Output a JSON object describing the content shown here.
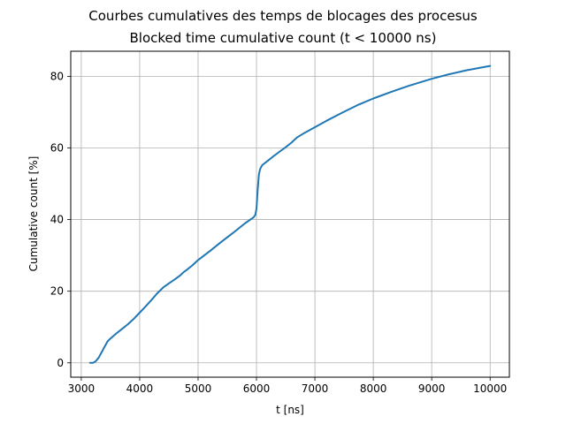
{
  "chart_data": {
    "type": "line",
    "title": "Courbes cumulatives des temps de blocages des procesus",
    "subtitle": "Blocked time cumulative count (t < 10000 ns)",
    "xlabel": "t [ns]",
    "ylabel": "Cumulative count [%]",
    "xlim": [
      2820,
      10330
    ],
    "ylim": [
      -4,
      87
    ],
    "xticks": [
      3000,
      4000,
      5000,
      6000,
      7000,
      8000,
      9000,
      10000
    ],
    "yticks": [
      0,
      20,
      40,
      60,
      80
    ],
    "grid": true,
    "series_color": "#1f77b4",
    "series": [
      {
        "x": [
          3150,
          3200,
          3250,
          3300,
          3350,
          3400,
          3450,
          3500,
          3600,
          3700,
          3800,
          3900,
          4000,
          4100,
          4200,
          4300,
          4400,
          4500,
          4600,
          4700,
          4750,
          4800,
          4900,
          5000,
          5200,
          5400,
          5600,
          5800,
          5950,
          5980,
          6000,
          6020,
          6040,
          6060,
          6080,
          6100,
          6200,
          6300,
          6400,
          6500,
          6600,
          6650,
          6700,
          6800,
          7000,
          7200,
          7500,
          7750,
          8000,
          8300,
          8600,
          9000,
          9300,
          9600,
          10000
        ],
        "y": [
          0,
          0,
          0.5,
          1.5,
          3,
          4.5,
          6,
          6.8,
          8.2,
          9.5,
          10.8,
          12.3,
          14,
          15.7,
          17.5,
          19.4,
          21,
          22.2,
          23.3,
          24.5,
          25.3,
          25.9,
          27.2,
          28.7,
          31.2,
          33.8,
          36.3,
          38.9,
          40.6,
          41.3,
          43,
          48,
          52.5,
          54,
          54.7,
          55.2,
          56.5,
          57.8,
          59,
          60.2,
          61.5,
          62.3,
          63,
          64,
          65.8,
          67.6,
          70.1,
          72.1,
          73.8,
          75.6,
          77.3,
          79.3,
          80.6,
          81.7,
          82.9
        ]
      }
    ]
  }
}
